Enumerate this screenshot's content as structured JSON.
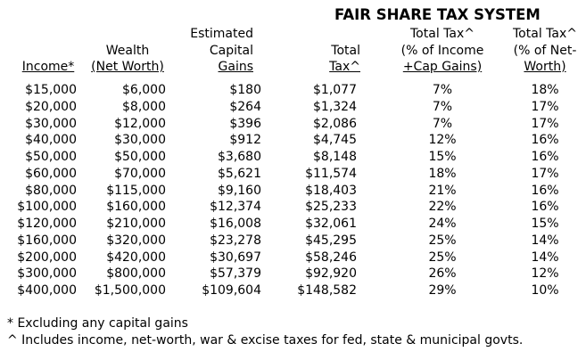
{
  "title": "FAIR SHARE TAX SYSTEM",
  "table": {
    "headers": [
      [
        "Income*"
      ],
      [
        "Wealth",
        "(Net Worth)"
      ],
      [
        "Estimated",
        "Capital",
        "Gains"
      ],
      [
        "Total",
        "Tax^"
      ],
      [
        "Total Tax^",
        "(% of Income",
        "+Cap Gains)"
      ],
      [
        "Total Tax^",
        "(% of Net-",
        "Worth)"
      ]
    ],
    "rows": [
      [
        "$15,000",
        "$6,000",
        "$180",
        "$1,077",
        "7%",
        "18%"
      ],
      [
        "$20,000",
        "$8,000",
        "$264",
        "$1,324",
        "7%",
        "17%"
      ],
      [
        "$30,000",
        "$12,000",
        "$396",
        "$2,086",
        "7%",
        "17%"
      ],
      [
        "$40,000",
        "$30,000",
        "$912",
        "$4,745",
        "12%",
        "16%"
      ],
      [
        "$50,000",
        "$50,000",
        "$3,680",
        "$8,148",
        "15%",
        "16%"
      ],
      [
        "$60,000",
        "$70,000",
        "$5,621",
        "$11,574",
        "18%",
        "17%"
      ],
      [
        "$80,000",
        "$115,000",
        "$9,160",
        "$18,403",
        "21%",
        "16%"
      ],
      [
        "$100,000",
        "$160,000",
        "$12,374",
        "$25,233",
        "22%",
        "16%"
      ],
      [
        "$120,000",
        "$210,000",
        "$16,008",
        "$32,061",
        "24%",
        "15%"
      ],
      [
        "$160,000",
        "$320,000",
        "$23,278",
        "$45,295",
        "25%",
        "14%"
      ],
      [
        "$200,000",
        "$420,000",
        "$30,697",
        "$58,246",
        "25%",
        "14%"
      ],
      [
        "$300,000",
        "$800,000",
        "$57,379",
        "$92,920",
        "26%",
        "12%"
      ],
      [
        "$400,000",
        "$1,500,000",
        "$109,604",
        "$148,582",
        "29%",
        "10%"
      ]
    ]
  },
  "footnotes": [
    "* Excluding any capital gains",
    "^ Includes income, net-worth, war & excise taxes for fed, state & municipal govts."
  ]
}
